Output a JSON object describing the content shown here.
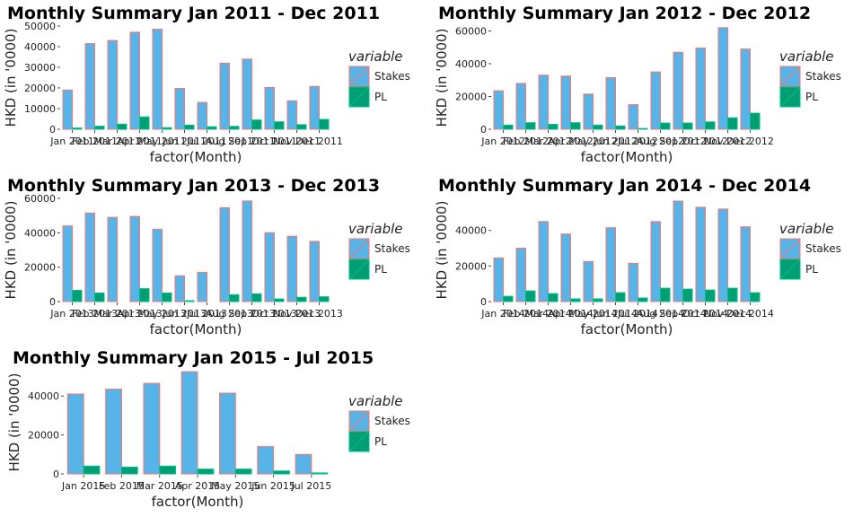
{
  "chart_data": [
    {
      "type": "bar",
      "title": "Monthly Summary  Jan 2011 - Dec 2011",
      "xlabel": "factor(Month)",
      "ylabel": "HKD (in '0000)",
      "ylim": [
        0,
        50000
      ],
      "yticks": [
        0,
        10000,
        20000,
        30000,
        40000,
        50000
      ],
      "categories": [
        "Jan 2011",
        "Feb 2011",
        "Mar 2011",
        "Apr 2011",
        "May 2011",
        "Jun 2011",
        "Jul 2011",
        "Aug 2011",
        "Sep 2011",
        "Oct 2011",
        "Nov 2011",
        "Dec 2011"
      ],
      "series": [
        {
          "name": "Stakes",
          "values": [
            19000,
            41500,
            43000,
            47000,
            48500,
            19800,
            13000,
            32000,
            34000,
            20200,
            13800,
            20800
          ]
        },
        {
          "name": "PL",
          "values": [
            600,
            1500,
            2500,
            6000,
            800,
            2000,
            1200,
            1400,
            4500,
            3600,
            2200,
            4800
          ]
        }
      ],
      "legend": {
        "title": "variable",
        "position": "right"
      }
    },
    {
      "type": "bar",
      "title": "Monthly Summary  Jan 2012 - Dec 2012",
      "xlabel": "factor(Month)",
      "ylabel": "HKD (in '0000)",
      "ylim": [
        0,
        63000
      ],
      "yticks": [
        0,
        20000,
        40000,
        60000
      ],
      "categories": [
        "Jan 2012",
        "Feb 2012",
        "Mar 2012",
        "Apr 2012",
        "May 2012",
        "Jun 2012",
        "Jul 2012",
        "Aug 2012",
        "Sep 2012",
        "Oct 2012",
        "Nov 2012",
        "Dec 2012"
      ],
      "series": [
        {
          "name": "Stakes",
          "values": [
            23500,
            28000,
            33000,
            32500,
            21500,
            31500,
            15000,
            35000,
            47000,
            49500,
            62000,
            49000
          ]
        },
        {
          "name": "PL",
          "values": [
            2500,
            4000,
            3000,
            4000,
            2500,
            2000,
            500,
            3800,
            3800,
            4500,
            7000,
            9800
          ]
        }
      ],
      "legend": {
        "title": "variable",
        "position": "right"
      }
    },
    {
      "type": "bar",
      "title": "Monthly Summary  Jan 2013 - Dec 2013",
      "xlabel": "factor(Month)",
      "ylabel": "HKD (in '0000)",
      "ylim": [
        0,
        60000
      ],
      "yticks": [
        0,
        20000,
        40000,
        60000
      ],
      "categories": [
        "Jan 2013",
        "Feb 2013",
        "Mar 2013",
        "Apr 2013",
        "May 2013",
        "Jun 2013",
        "Jul 2013",
        "Aug 2013",
        "Sep 2013",
        "Oct 2013",
        "Nov 2013",
        "Dec 2013"
      ],
      "series": [
        {
          "name": "Stakes",
          "values": [
            44000,
            51500,
            49000,
            49500,
            42000,
            15000,
            17000,
            54500,
            58500,
            40000,
            38000,
            35000
          ]
        },
        {
          "name": "PL",
          "values": [
            6500,
            5000,
            0,
            7500,
            5000,
            500,
            0,
            4000,
            4500,
            1500,
            2500,
            2800
          ]
        }
      ],
      "legend": {
        "title": "variable",
        "position": "right"
      }
    },
    {
      "type": "bar",
      "title": "Monthly Summary  Jan 2014 - Dec 2014",
      "xlabel": "factor(Month)",
      "ylabel": "HKD (in '0000)",
      "ylim": [
        0,
        58000
      ],
      "yticks": [
        0,
        20000,
        40000
      ],
      "categories": [
        "Jan 2014",
        "Feb 2014",
        "Mar 2014",
        "Apr 2014",
        "May 2014",
        "Jun 2014",
        "Jul 2014",
        "Aug 2014",
        "Sep 2014",
        "Oct 2014",
        "Nov 2014",
        "Dec 2014"
      ],
      "series": [
        {
          "name": "Stakes",
          "values": [
            24500,
            30000,
            45000,
            38000,
            22500,
            41500,
            21500,
            45000,
            56500,
            53000,
            52000,
            42000
          ]
        },
        {
          "name": "PL",
          "values": [
            3000,
            6000,
            4500,
            1500,
            1500,
            5000,
            2000,
            7500,
            7000,
            6500,
            7500,
            5000
          ]
        }
      ],
      "legend": {
        "title": "variable",
        "position": "right"
      }
    },
    {
      "type": "bar",
      "title": "Monthly Summary  Jan 2015 - Jul 2015",
      "xlabel": "factor(Month)",
      "ylabel": "HKD (in '0000)",
      "ylim": [
        0,
        53000
      ],
      "yticks": [
        0,
        20000,
        40000
      ],
      "categories": [
        "Jan 2015",
        "Feb 2015",
        "Mar 2015",
        "Apr 2015",
        "May 2015",
        "Jun 2015",
        "Jul 2015"
      ],
      "series": [
        {
          "name": "Stakes",
          "values": [
            41000,
            43500,
            46500,
            52500,
            41500,
            14000,
            10000
          ]
        },
        {
          "name": "PL",
          "values": [
            4000,
            3500,
            4000,
            2500,
            2500,
            1500,
            500
          ]
        }
      ],
      "legend": {
        "title": "variable",
        "position": "right"
      }
    }
  ],
  "colors": {
    "stakes_fill": "#56b4e9",
    "stakes_stroke": "#f8766d",
    "pl_fill": "#009e73",
    "pl_stroke": "#00c08b",
    "text": "#222222"
  }
}
